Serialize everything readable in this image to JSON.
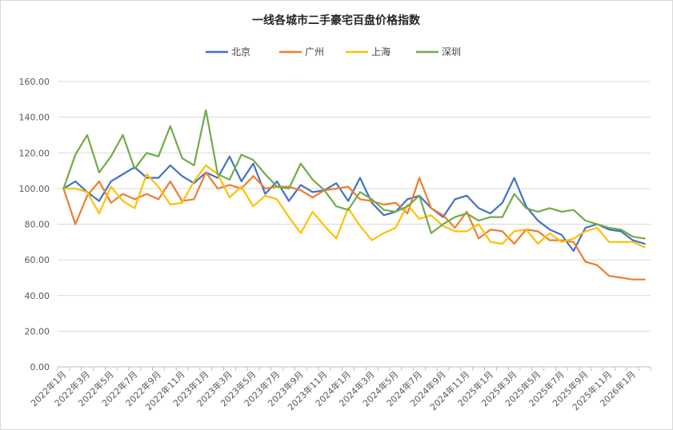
{
  "chart_data": {
    "type": "line",
    "title": "一线各城市二手豪宅百盘价格指数",
    "xlabel": "",
    "ylabel": "",
    "ylim": [
      0,
      160
    ],
    "yticks": [
      "0.00",
      "20.00",
      "40.00",
      "60.00",
      "80.00",
      "100.00",
      "120.00",
      "140.00",
      "160.00"
    ],
    "grid": true,
    "legend_position": "top",
    "x": [
      "2022年1月",
      "2022年2月",
      "2022年3月",
      "2022年4月",
      "2022年5月",
      "2022年6月",
      "2022年7月",
      "2022年8月",
      "2022年9月",
      "2022年10月",
      "2022年11月",
      "2022年12月",
      "2023年1月",
      "2023年2月",
      "2023年3月",
      "2023年4月",
      "2023年5月",
      "2023年6月",
      "2023年7月",
      "2023年8月",
      "2023年9月",
      "2023年10月",
      "2023年11月",
      "2023年12月",
      "2024年1月",
      "2024年2月",
      "2024年3月",
      "2024年4月",
      "2024年5月",
      "2024年6月",
      "2024年7月",
      "2024年8月",
      "2024年9月",
      "2024年10月",
      "2024年11月",
      "2024年12月",
      "2025年1月",
      "2025年2月",
      "2025年3月",
      "2025年4月",
      "2025年5月",
      "2025年6月",
      "2025年7月",
      "2025年8月",
      "2025年9月",
      "2025年10月",
      "2025年11月",
      "2025年12月",
      "2026年1月",
      "2026年2月"
    ],
    "xtick_labels": [
      "2022年1月",
      "2022年3月",
      "2022年5月",
      "2022年7月",
      "2022年9月",
      "2022年11月",
      "2023年1月",
      "2023年3月",
      "2023年5月",
      "2023年7月",
      "2023年9月",
      "2023年11月",
      "2024年1月",
      "2024年3月",
      "2024年5月",
      "2024年7月",
      "2024年9月",
      "2024年11月",
      "2025年1月",
      "2025年3月",
      "2025年5月",
      "2025年7月",
      "2025年9月",
      "2025年11月",
      "2026年1月"
    ],
    "series": [
      {
        "name": "北京",
        "color": "#4472c4",
        "values": [
          100,
          104,
          98,
          93,
          104,
          108,
          112,
          106,
          106,
          113,
          107,
          103,
          109,
          106,
          118,
          104,
          114,
          97,
          104,
          93,
          102,
          98,
          99,
          103,
          93,
          106,
          92,
          85,
          87,
          94,
          96,
          89,
          84,
          94,
          96,
          89,
          86,
          92,
          106,
          90,
          82,
          77,
          74,
          65,
          78,
          80,
          77,
          76,
          71,
          69
        ]
      },
      {
        "name": "广州",
        "color": "#ed7d31",
        "values": [
          100,
          80,
          96,
          104,
          92,
          97,
          94,
          97,
          94,
          104,
          93,
          94,
          109,
          100,
          102,
          100,
          107,
          100,
          101,
          101,
          99,
          95,
          99,
          100,
          101,
          94,
          93,
          91,
          92,
          86,
          106,
          89,
          85,
          78,
          87,
          72,
          77,
          76,
          69,
          77,
          76,
          71,
          71,
          70,
          59,
          57,
          51,
          50,
          49,
          49
        ]
      },
      {
        "name": "上海",
        "color": "#ffc000",
        "values": [
          100,
          100,
          98,
          86,
          101,
          93,
          89,
          108,
          101,
          91,
          92,
          104,
          113,
          108,
          95,
          101,
          90,
          96,
          94,
          84,
          75,
          87,
          79,
          72,
          89,
          79,
          71,
          75,
          78,
          91,
          83,
          85,
          79,
          76,
          76,
          80,
          70,
          69,
          76,
          77,
          69,
          75,
          70,
          72,
          76,
          78,
          70,
          70,
          70,
          67
        ]
      },
      {
        "name": "深圳",
        "color": "#70ad47",
        "values": [
          100,
          119,
          130,
          109,
          118,
          130,
          111,
          120,
          118,
          135,
          117,
          113,
          144,
          108,
          105,
          119,
          116,
          108,
          101,
          100,
          114,
          105,
          99,
          90,
          88,
          98,
          94,
          88,
          87,
          90,
          96,
          75,
          80,
          84,
          86,
          82,
          84,
          84,
          97,
          89,
          87,
          89,
          87,
          88,
          82,
          80,
          78,
          77,
          73,
          72
        ]
      }
    ]
  }
}
